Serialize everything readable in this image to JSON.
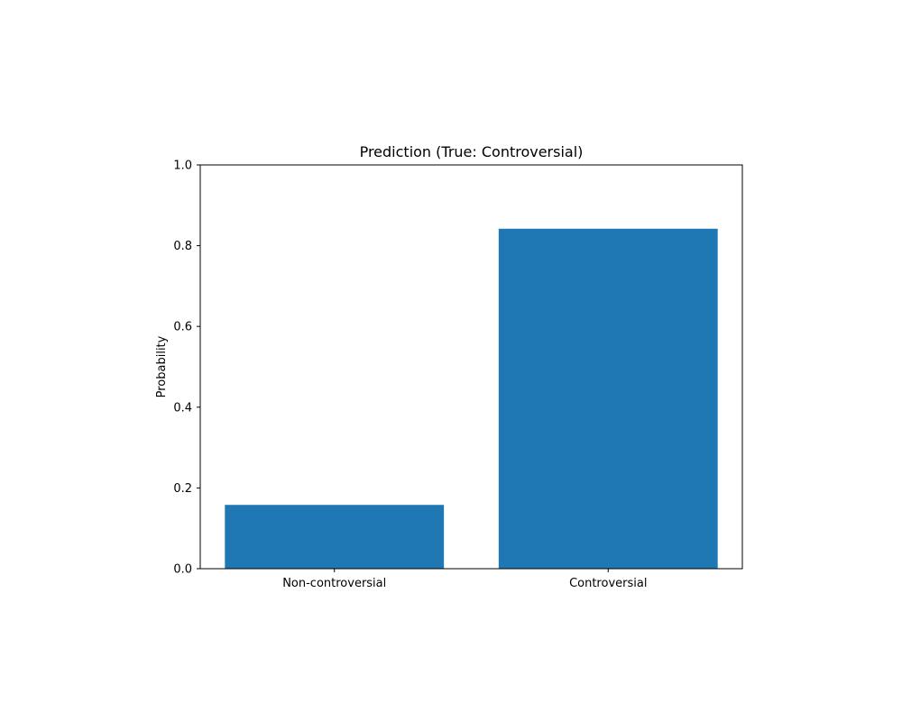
{
  "chart_data": {
    "type": "bar",
    "title": "Prediction (True: Controversial)",
    "xlabel": "",
    "ylabel": "Probability",
    "categories": [
      "Non-controversial",
      "Controversial"
    ],
    "values": [
      0.158,
      0.842
    ],
    "ylim": [
      0.0,
      1.0
    ],
    "yticks": [
      0.0,
      0.2,
      0.4,
      0.6,
      0.8,
      1.0
    ],
    "ytick_labels": [
      "0.0",
      "0.2",
      "0.4",
      "0.6",
      "0.8",
      "1.0"
    ],
    "grid": false,
    "legend": "none",
    "bar_color": "#1f77b4"
  }
}
